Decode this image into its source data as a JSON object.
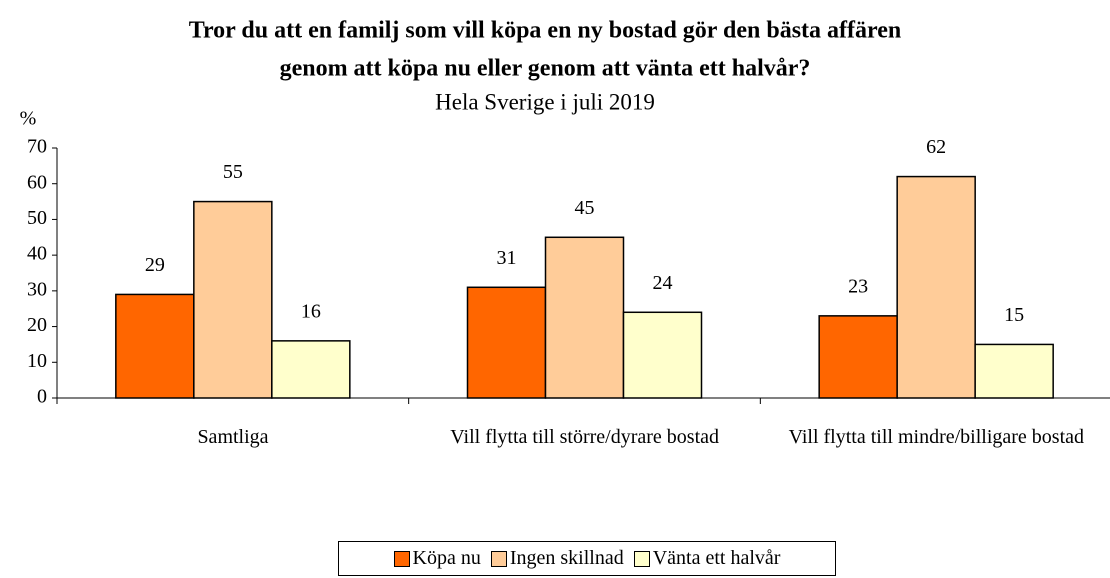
{
  "chart_data": {
    "type": "bar",
    "title": [
      "Tror du att en familj som vill köpa en ny bostad gör den bästa affären",
      "genom att köpa nu eller genom att vänta ett halvår?"
    ],
    "subtitle": "Hela Sverige i juli 2019",
    "y_label": "%",
    "categories": [
      "Samtliga",
      "Vill flytta till större/dyrare bostad",
      "Vill flytta till mindre/billigare bostad"
    ],
    "series": [
      {
        "name": "Köpa nu",
        "color": "#ff6600",
        "values": [
          29,
          31,
          23
        ]
      },
      {
        "name": "Ingen skillnad",
        "color": "#ffcc99",
        "values": [
          55,
          45,
          62
        ]
      },
      {
        "name": "Vänta ett halvår",
        "color": "#ffffcc",
        "values": [
          16,
          24,
          15
        ]
      }
    ],
    "ylim": [
      0,
      70
    ],
    "yticks": [
      0,
      10,
      20,
      30,
      40,
      50,
      60,
      70
    ]
  }
}
